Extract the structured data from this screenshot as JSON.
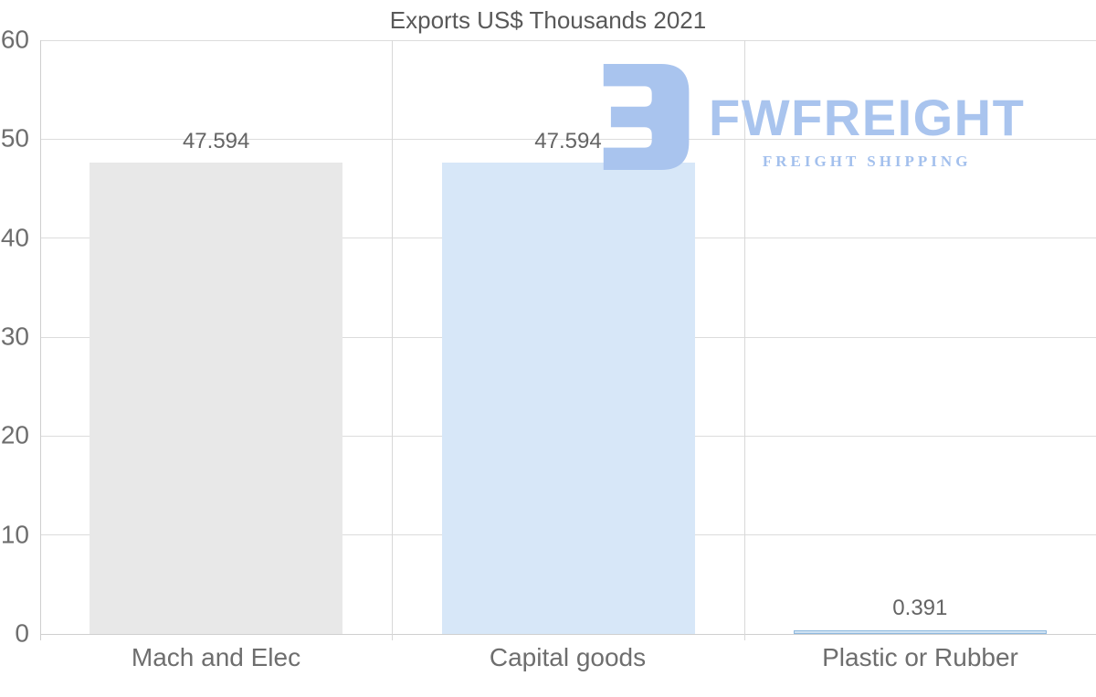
{
  "chart_data": {
    "type": "bar",
    "title": "Exports US$ Thousands 2021",
    "categories": [
      "Mach and Elec",
      "Capital goods",
      "Plastic or Rubber"
    ],
    "values": [
      47.594,
      47.594,
      0.391
    ],
    "value_labels": [
      "47.594",
      "47.594",
      "0.391"
    ],
    "bar_colors": [
      "#e8e8e8",
      "#d7e7f8",
      "#cfe2f2"
    ],
    "bar_border_colors": [
      null,
      null,
      "#8fb9de"
    ],
    "xlabel": "",
    "ylabel": "",
    "ylim": [
      0,
      60
    ],
    "yticks": [
      0,
      10,
      20,
      30,
      40,
      50,
      60
    ],
    "grid": "horizontal gridlines on, vertical category dividers on",
    "legend": "none"
  },
  "watermark": {
    "brand": "FWFREIGHT",
    "tagline": "FREIGHT SHIPPING",
    "brand_color": "#a9c4ee",
    "tagline_color": "#a3c0ed"
  },
  "colors": {
    "background": "#ffffff",
    "title_text": "#595959",
    "axis_tick_text": "#6e6e6e",
    "value_label_text": "#646464",
    "gridline": "#dcdcdc",
    "axis_line": "#cfcfcf"
  }
}
